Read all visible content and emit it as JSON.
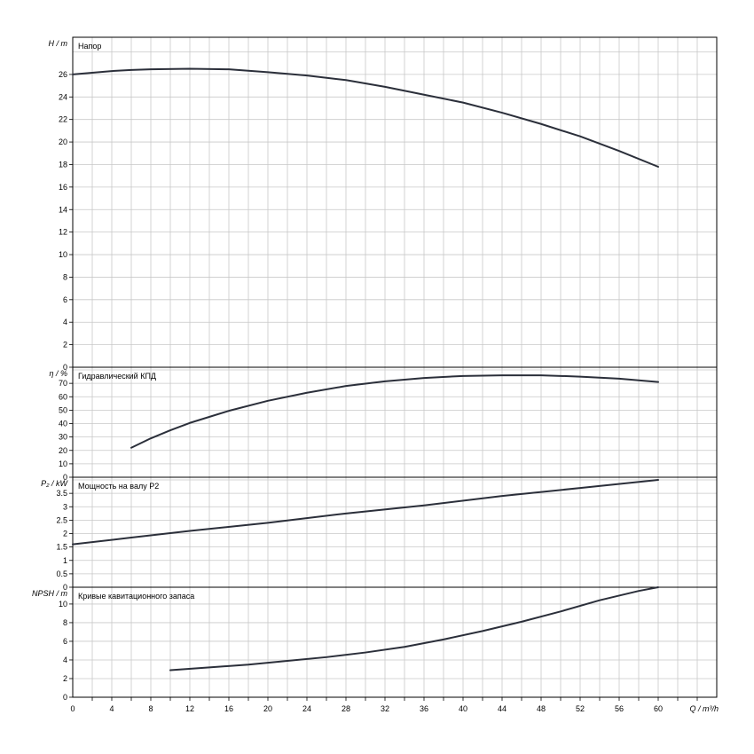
{
  "chart_data": {
    "type": "line",
    "x_axis": {
      "label": "Q / m³/h",
      "range": [
        0,
        66
      ],
      "ticks": [
        0,
        4,
        8,
        12,
        16,
        20,
        24,
        28,
        32,
        36,
        40,
        44,
        48,
        52,
        56,
        60
      ],
      "tick_labels": [
        "0",
        "4",
        "8",
        "12",
        "16",
        "20",
        "24",
        "28",
        "32",
        "36",
        "40",
        "44",
        "48",
        "52",
        "56",
        "60"
      ]
    },
    "panels": [
      {
        "id": "head",
        "title": "Напор",
        "ylabel": "H / m",
        "ylim": [
          0,
          29.3
        ],
        "yticks": [
          0,
          2,
          4,
          6,
          8,
          10,
          12,
          14,
          16,
          18,
          20,
          22,
          24,
          26
        ],
        "ytick_labels": [
          "0",
          "2",
          "4",
          "6",
          "8",
          "10",
          "12",
          "14",
          "16",
          "18",
          "20",
          "22",
          "24",
          "26"
        ],
        "series": [
          {
            "x": [
              0,
              4,
              6,
              8,
              12,
              16,
              20,
              24,
              28,
              32,
              36,
              40,
              44,
              48,
              52,
              56,
              60
            ],
            "y": [
              26.0,
              26.3,
              26.4,
              26.45,
              26.5,
              26.45,
              26.2,
              25.9,
              25.5,
              24.9,
              24.2,
              23.5,
              22.6,
              21.6,
              20.5,
              19.2,
              17.8
            ]
          }
        ]
      },
      {
        "id": "efficiency",
        "title": "Гидравлический КПД",
        "ylabel": "η / %",
        "ylim": [
          0,
          82
        ],
        "yticks": [
          0,
          10,
          20,
          30,
          40,
          50,
          60,
          70
        ],
        "ytick_labels": [
          "0",
          "10",
          "20",
          "30",
          "40",
          "50",
          "60",
          "70"
        ],
        "series": [
          {
            "x": [
              6,
              8,
              10,
              12,
              16,
              20,
              24,
              28,
              32,
              36,
              40,
              44,
              48,
              52,
              56,
              60
            ],
            "y": [
              22,
              29,
              35,
              40.5,
              49.5,
              57,
              63,
              68,
              71.5,
              74,
              75.5,
              76,
              76,
              75,
              73.5,
              71
            ]
          }
        ]
      },
      {
        "id": "power",
        "title": "Мощность на валу P2",
        "ylabel": "P₂ / kW",
        "ylim": [
          0,
          4.1
        ],
        "yticks": [
          0,
          0.5,
          1,
          1.5,
          2,
          2.5,
          3,
          3.5
        ],
        "ytick_labels": [
          "0",
          "0.5",
          "1",
          "1.5",
          "2",
          "2.5",
          "3",
          "3.5"
        ],
        "series": [
          {
            "x": [
              0,
              6,
              12,
              20,
              28,
              36,
              44,
              52,
              60
            ],
            "y": [
              1.6,
              1.85,
              2.1,
              2.4,
              2.75,
              3.05,
              3.4,
              3.7,
              4.0
            ]
          }
        ]
      },
      {
        "id": "npsh",
        "title": "Кривые кавитационного запаса",
        "ylabel": "NPSH / m",
        "ylim": [
          0,
          11.8
        ],
        "yticks": [
          0,
          2,
          4,
          6,
          8,
          10
        ],
        "ytick_labels": [
          "0",
          "2",
          "4",
          "6",
          "8",
          "10"
        ],
        "series": [
          {
            "x": [
              10,
              14,
              18,
              22,
              26,
              30,
              34,
              38,
              42,
              46,
              50,
              54,
              58,
              60
            ],
            "y": [
              2.9,
              3.2,
              3.5,
              3.9,
              4.3,
              4.8,
              5.4,
              6.2,
              7.1,
              8.1,
              9.2,
              10.4,
              11.4,
              11.8
            ]
          }
        ]
      }
    ],
    "grid": true,
    "line_color": "#2b2f3a",
    "grid_color": "#c8c8c8"
  }
}
